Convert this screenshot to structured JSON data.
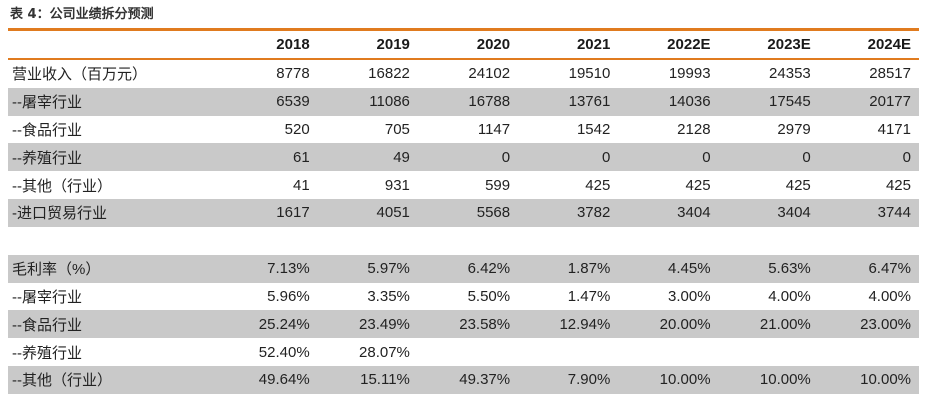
{
  "table_title": "表 4：公司业绩拆分预测",
  "columns": [
    "",
    "2018",
    "2019",
    "2020",
    "2021",
    "2022E",
    "2023E",
    "2024E"
  ],
  "rows": [
    {
      "label": "营业收入（百万元）",
      "values": [
        "8778",
        "16822",
        "24102",
        "19510",
        "19993",
        "24353",
        "28517"
      ],
      "shaded": false
    },
    {
      "label": "--屠宰行业",
      "values": [
        "6539",
        "11086",
        "16788",
        "13761",
        "14036",
        "17545",
        "20177"
      ],
      "shaded": true
    },
    {
      "label": "--食品行业",
      "values": [
        "520",
        "705",
        "1147",
        "1542",
        "2128",
        "2979",
        "4171"
      ],
      "shaded": false
    },
    {
      "label": "--养殖行业",
      "values": [
        "61",
        "49",
        "0",
        "0",
        "0",
        "0",
        "0"
      ],
      "shaded": true
    },
    {
      "label": "--其他（行业）",
      "values": [
        "41",
        "931",
        "599",
        "425",
        "425",
        "425",
        "425"
      ],
      "shaded": false
    },
    {
      "label": "-进口贸易行业",
      "values": [
        "1617",
        "4051",
        "5568",
        "3782",
        "3404",
        "3404",
        "3744"
      ],
      "shaded": true
    },
    {
      "label": "毛利率（%）",
      "values": [
        "7.13%",
        "5.97%",
        "6.42%",
        "1.87%",
        "4.45%",
        "5.63%",
        "6.47%"
      ],
      "shaded": true
    },
    {
      "label": "--屠宰行业",
      "values": [
        "5.96%",
        "3.35%",
        "5.50%",
        "1.47%",
        "3.00%",
        "4.00%",
        "4.00%"
      ],
      "shaded": false
    },
    {
      "label": "--食品行业",
      "values": [
        "25.24%",
        "23.49%",
        "23.58%",
        "12.94%",
        "20.00%",
        "21.00%",
        "23.00%"
      ],
      "shaded": true
    },
    {
      "label": "--养殖行业",
      "values": [
        "52.40%",
        "28.07%",
        "",
        "",
        "",
        "",
        ""
      ],
      "shaded": false
    },
    {
      "label": "--其他（行业）",
      "values": [
        "49.64%",
        "15.11%",
        "49.37%",
        "7.90%",
        "10.00%",
        "10.00%",
        "10.00%"
      ],
      "shaded": true
    }
  ],
  "colors": {
    "accent": "#e07b1f",
    "row_shade": "#c9c9c9"
  }
}
